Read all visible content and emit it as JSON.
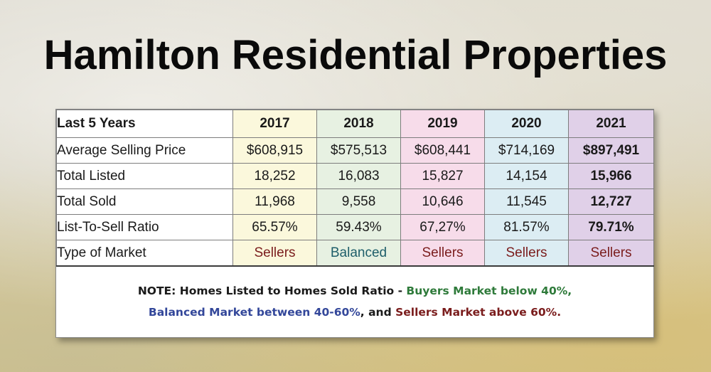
{
  "title": "Hamilton Residential Properties",
  "chart_data": {
    "type": "table",
    "corner_label": "Last 5 Years",
    "columns": [
      "2017",
      "2018",
      "2019",
      "2020",
      "2021"
    ],
    "column_colors": [
      "#fbf8dc",
      "#e7f1e2",
      "#f7dcea",
      "#dcedf3",
      "#e0d0e8"
    ],
    "rows": [
      {
        "label": "Average Selling Price",
        "values": [
          "$608,915",
          "$575,513",
          "$608,441",
          "$714,169",
          "$897,491"
        ]
      },
      {
        "label": "Total Listed",
        "values": [
          "18,252",
          "16,083",
          "15,827",
          "14,154",
          "15,966"
        ]
      },
      {
        "label": "Total Sold",
        "values": [
          "11,968",
          "9,558",
          "10,646",
          "11,545",
          "12,727"
        ]
      },
      {
        "label": "List-To-Sell Ratio",
        "values": [
          "65.57%",
          "59.43%",
          "67,27%",
          "81.57%",
          "79.71%"
        ]
      },
      {
        "label": "Type of Market",
        "values": [
          "Sellers",
          "Balanced",
          "Sellers",
          "Sellers",
          "Sellers"
        ]
      }
    ],
    "highlight_column": "2021",
    "market_colors": {
      "Sellers": "#7a1c1c",
      "Balanced": "#1e5e6a"
    }
  },
  "note": {
    "prefix": "NOTE: Homes Listed to Homes Sold Ratio - ",
    "buyers": "Buyers Market below 40%,",
    "balanced": "Balanced Market between 40-60%",
    "middle": ", and ",
    "sellers": "Sellers Market above 60%.",
    "colors": {
      "buyers": "#2e7a3a",
      "balanced": "#33479a",
      "sellers": "#7a1c1c"
    }
  }
}
